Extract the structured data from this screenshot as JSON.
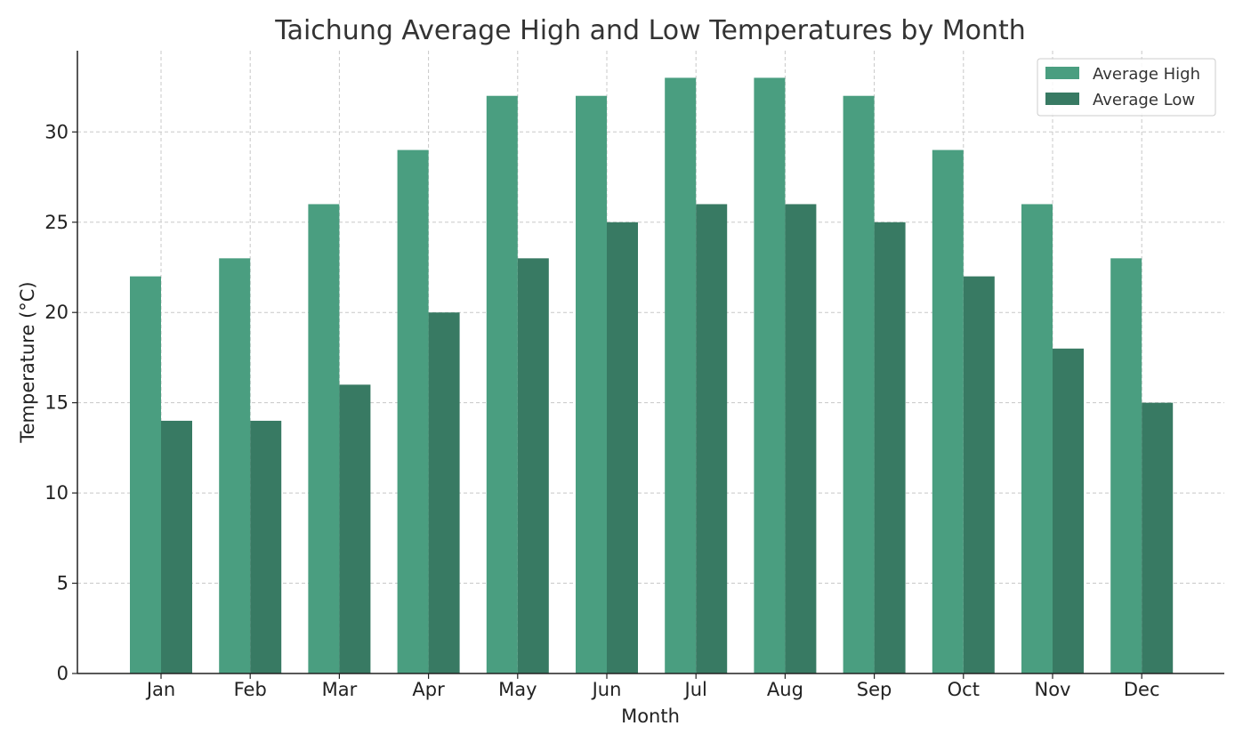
{
  "chart_data": {
    "type": "bar",
    "title": "Taichung Average High and Low Temperatures by Month",
    "xlabel": "Month",
    "ylabel": "Temperature (°C)",
    "categories": [
      "Jan",
      "Feb",
      "Mar",
      "Apr",
      "May",
      "Jun",
      "Jul",
      "Aug",
      "Sep",
      "Oct",
      "Nov",
      "Dec"
    ],
    "series": [
      {
        "name": "Average High",
        "color": "#4a9e80",
        "values": [
          22,
          23,
          26,
          29,
          32,
          32,
          33,
          33,
          32,
          29,
          26,
          23
        ]
      },
      {
        "name": "Average Low",
        "color": "#387a63",
        "values": [
          14,
          14,
          16,
          20,
          23,
          25,
          26,
          26,
          25,
          22,
          18,
          15
        ]
      }
    ],
    "ylim": [
      0,
      34.5
    ],
    "yticks": [
      0,
      5,
      10,
      15,
      20,
      25,
      30
    ],
    "grid": true,
    "legend_position": "top-right"
  }
}
